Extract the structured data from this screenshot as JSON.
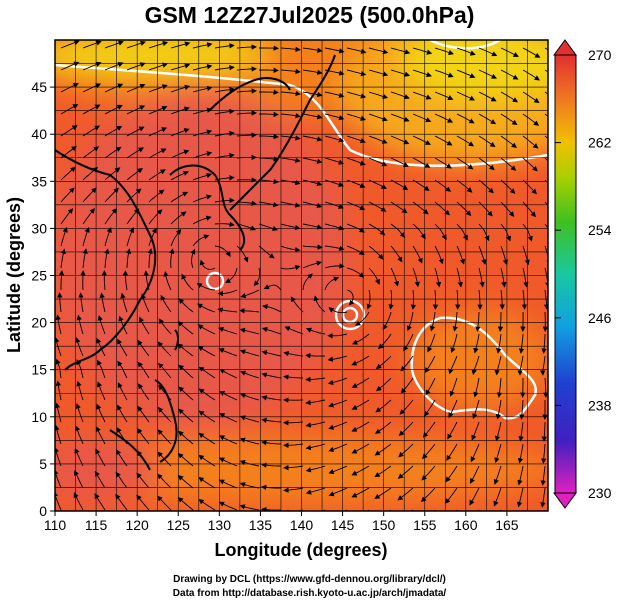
{
  "title": "GSM 12Z27Jul2025 (500.0hPa)",
  "chart_data": {
    "type": "heatmap",
    "title": "GSM 12Z27Jul2025 (500.0hPa)",
    "xlabel": "Longitude (degrees)",
    "ylabel": "Latitude  (degrees)",
    "xlim": [
      110,
      170
    ],
    "ylim": [
      0,
      50
    ],
    "xticks": [
      110,
      115,
      120,
      125,
      130,
      135,
      140,
      145,
      150,
      155,
      160,
      165
    ],
    "yticks": [
      0,
      5,
      10,
      15,
      20,
      25,
      30,
      35,
      40,
      45
    ],
    "grid": true,
    "colorbar": {
      "min": 230,
      "max": 270,
      "ticks": [
        230,
        238,
        246,
        254,
        262,
        270
      ],
      "colors": [
        "#e020c0",
        "#3030c8",
        "#10a0e0",
        "#18c8a0",
        "#30c030",
        "#a0d000",
        "#f0c000",
        "#f07020",
        "#e03030"
      ]
    },
    "field_colors": {
      "warm_core": "#e8584a",
      "warm": "#f05a2a",
      "moderate": "#f4801e",
      "cool": "#f6a81a",
      "cold": "#f2d418"
    },
    "contour_color": "#ffffff",
    "vortices": [
      {
        "name": "typhoon-center",
        "lon": 145.5,
        "lat": 22.8
      },
      {
        "name": "low-center",
        "lon": 128.8,
        "lat": 26.6
      }
    ]
  },
  "credits": {
    "line1": "Drawing by DCL (https://www.gfd-dennou.org/library/dcl/)",
    "line2": "Data from http://database.rish.kyoto-u.ac.jp/arch/jmadata/"
  }
}
